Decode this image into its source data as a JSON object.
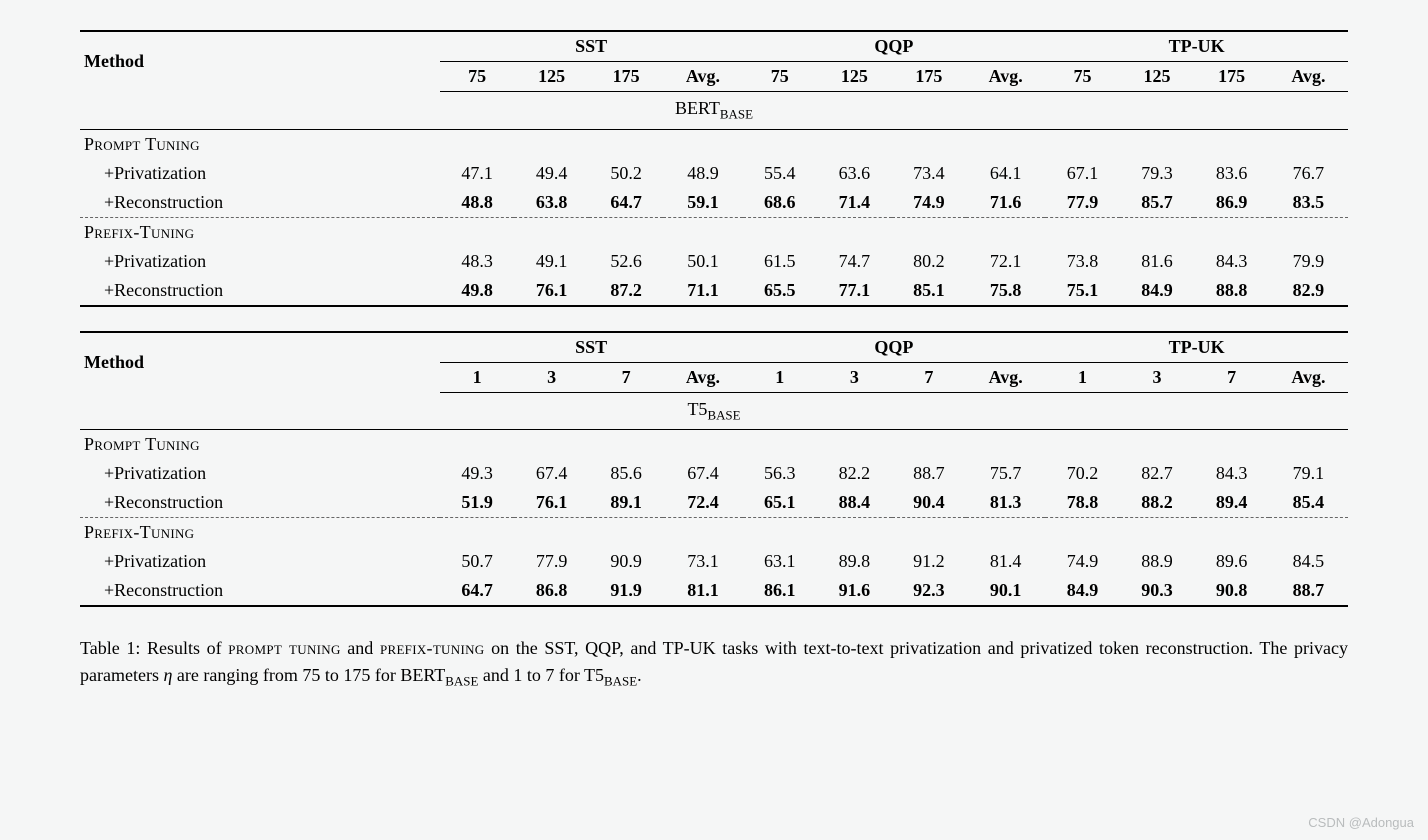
{
  "watermark": "CSDN @Adongua",
  "tables": [
    {
      "method_header": "Method",
      "groups": [
        "SST",
        "QQP",
        "TP-UK"
      ],
      "subcols": [
        "75",
        "125",
        "175",
        "Avg."
      ],
      "section": {
        "prefix": "BERT",
        "sub": "BASE"
      },
      "blocks": [
        {
          "title": {
            "smallcaps": "Prompt Tuning"
          },
          "dashed_after": true,
          "rows": [
            {
              "label": "+Privatization",
              "bold": false,
              "vals": [
                "47.1",
                "49.4",
                "50.2",
                "48.9",
                "55.4",
                "63.6",
                "73.4",
                "64.1",
                "67.1",
                "79.3",
                "83.6",
                "76.7"
              ]
            },
            {
              "label": "+Reconstruction",
              "bold": true,
              "vals": [
                "48.8",
                "63.8",
                "64.7",
                "59.1",
                "68.6",
                "71.4",
                "74.9",
                "71.6",
                "77.9",
                "85.7",
                "86.9",
                "83.5"
              ]
            }
          ]
        },
        {
          "title": {
            "smallcaps": "Prefix-Tuning"
          },
          "dashed_after": false,
          "rows": [
            {
              "label": "+Privatization",
              "bold": false,
              "vals": [
                "48.3",
                "49.1",
                "52.6",
                "50.1",
                "61.5",
                "74.7",
                "80.2",
                "72.1",
                "73.8",
                "81.6",
                "84.3",
                "79.9"
              ]
            },
            {
              "label": "+Reconstruction",
              "bold": true,
              "vals": [
                "49.8",
                "76.1",
                "87.2",
                "71.1",
                "65.5",
                "77.1",
                "85.1",
                "75.8",
                "75.1",
                "84.9",
                "88.8",
                "82.9"
              ]
            }
          ]
        }
      ]
    },
    {
      "method_header": "Method",
      "groups": [
        "SST",
        "QQP",
        "TP-UK"
      ],
      "subcols": [
        "1",
        "3",
        "7",
        "Avg."
      ],
      "section": {
        "prefix": "T5",
        "sub": "BASE"
      },
      "blocks": [
        {
          "title": {
            "smallcaps": "Prompt Tuning"
          },
          "dashed_after": true,
          "rows": [
            {
              "label": "+Privatization",
              "bold": false,
              "vals": [
                "49.3",
                "67.4",
                "85.6",
                "67.4",
                "56.3",
                "82.2",
                "88.7",
                "75.7",
                "70.2",
                "82.7",
                "84.3",
                "79.1"
              ]
            },
            {
              "label": "+Reconstruction",
              "bold": true,
              "vals": [
                "51.9",
                "76.1",
                "89.1",
                "72.4",
                "65.1",
                "88.4",
                "90.4",
                "81.3",
                "78.8",
                "88.2",
                "89.4",
                "85.4"
              ]
            }
          ]
        },
        {
          "title": {
            "smallcaps": "Prefix-Tuning"
          },
          "dashed_after": false,
          "rows": [
            {
              "label": "+Privatization",
              "bold": false,
              "vals": [
                "50.7",
                "77.9",
                "90.9",
                "73.1",
                "63.1",
                "89.8",
                "91.2",
                "81.4",
                "74.9",
                "88.9",
                "89.6",
                "84.5"
              ]
            },
            {
              "label": "+Reconstruction",
              "bold": true,
              "vals": [
                "64.7",
                "86.8",
                "91.9",
                "81.1",
                "86.1",
                "91.6",
                "92.3",
                "90.1",
                "84.9",
                "90.3",
                "90.8",
                "88.7"
              ]
            }
          ]
        }
      ]
    }
  ],
  "caption": {
    "lead": "Table 1:  Results of ",
    "pt": "prompt tuning",
    "mid1": " and ",
    "px": "prefix-tuning",
    "mid2": " on the SST, QQP, and TP-UK tasks with text-to-text privatization and privatized token reconstruction.  The privacy parameters ",
    "eta": "η",
    "mid3": " are ranging from 75 to 175 for BERT",
    "sub1": "BASE",
    "mid4": " and 1 to 7 for T5",
    "sub2": "BASE",
    "end": "."
  }
}
